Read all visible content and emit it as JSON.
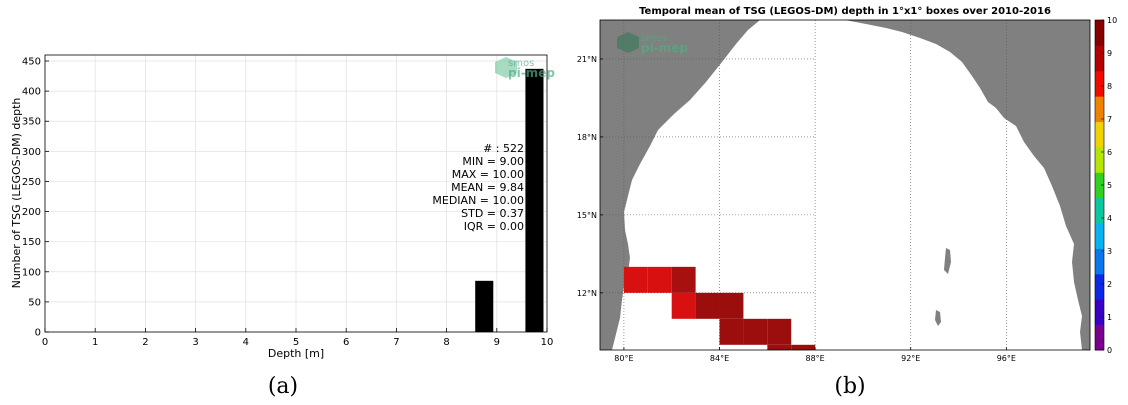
{
  "logo": {
    "line1": "smos",
    "line2": "pi-mep"
  },
  "captions": {
    "a": "(a)",
    "b": "(b)"
  },
  "chart_data": [
    {
      "type": "bar",
      "title": "",
      "xlabel": "Depth [m]",
      "ylabel": "Number of TSG (LEGOS-DM) depth",
      "xlim": [
        0,
        10
      ],
      "ylim": [
        0,
        460
      ],
      "xticks": [
        0,
        1,
        2,
        3,
        4,
        5,
        6,
        7,
        8,
        9,
        10
      ],
      "yticks": [
        0,
        50,
        100,
        150,
        200,
        250,
        300,
        350,
        400,
        450
      ],
      "grid": true,
      "bar_color": "#000000",
      "bars": [
        {
          "x": 8.75,
          "width": 0.36,
          "value": 85
        },
        {
          "x": 9.75,
          "width": 0.36,
          "value": 437
        }
      ],
      "stats": [
        "# : 522",
        "MIN = 9.00",
        "MAX =  10.00",
        "MEAN = 9.84",
        "MEDIAN = 10.00",
        "STD = 0.37",
        "IQR = 0.00"
      ]
    },
    {
      "type": "heatmap",
      "title": "Temporal mean of TSG (LEGOS-DM) depth in 1°x1° boxes over 2010-2016",
      "xlim": [
        79,
        99.5
      ],
      "ylim": [
        9.8,
        22.5
      ],
      "xticks": [
        80,
        84,
        88,
        92,
        96
      ],
      "xtick_labels": [
        "80°E",
        "84°E",
        "88°E",
        "92°E",
        "96°E"
      ],
      "yticks": [
        12,
        15,
        18,
        21
      ],
      "ytick_labels": [
        "12°N",
        "15°N",
        "18°N",
        "21°N"
      ],
      "land_color": "#808080",
      "ocean_color": "#ffffff",
      "colorbar": {
        "min": 0,
        "max": 10,
        "ticks": [
          "0",
          "1",
          "2",
          "3",
          "4",
          "5",
          "6",
          "7",
          "8",
          "9",
          "10"
        ],
        "colors": [
          "#7b008c",
          "#3b00c8",
          "#0a28e6",
          "#0878ee",
          "#05b4f0",
          "#08c8a0",
          "#2fd21e",
          "#b4e600",
          "#f0d200",
          "#f08200",
          "#f00a00",
          "#b40000",
          "#870000"
        ]
      },
      "cells": [
        {
          "lon": 80.5,
          "lat": 12.5,
          "value": 9.5,
          "color": "#d91010"
        },
        {
          "lon": 81.5,
          "lat": 12.5,
          "value": 9.5,
          "color": "#d91010"
        },
        {
          "lon": 82.5,
          "lat": 12.5,
          "value": 10.0,
          "color": "#a80f0f"
        },
        {
          "lon": 82.5,
          "lat": 11.5,
          "value": 9.5,
          "color": "#d91010"
        },
        {
          "lon": 83.5,
          "lat": 11.5,
          "value": 10.0,
          "color": "#9c0e0e"
        },
        {
          "lon": 84.5,
          "lat": 11.5,
          "value": 10.0,
          "color": "#9c0e0e"
        },
        {
          "lon": 84.5,
          "lat": 10.5,
          "value": 10.0,
          "color": "#9c0e0e"
        },
        {
          "lon": 85.5,
          "lat": 10.5,
          "value": 10.0,
          "color": "#9c0e0e"
        },
        {
          "lon": 86.5,
          "lat": 10.5,
          "value": 10.0,
          "color": "#9c0e0e"
        },
        {
          "lon": 86.5,
          "lat": 9.5,
          "value": 10.0,
          "color": "#9c0e0e"
        },
        {
          "lon": 87.5,
          "lat": 9.5,
          "value": 10.0,
          "color": "#9c0e0e"
        }
      ]
    }
  ]
}
